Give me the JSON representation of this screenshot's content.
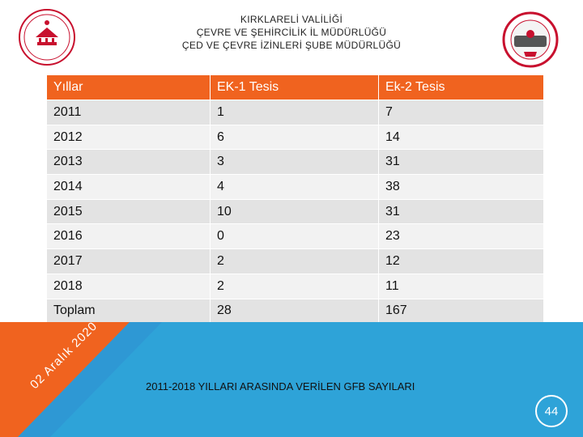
{
  "header": {
    "line1": "KIRKLARELİ VALİLİĞİ",
    "line2": "ÇEVRE VE ŞEHİRCİLİK İL MÜDÜRLÜĞÜ",
    "line3": "ÇED VE ÇEVRE İZİNLERİ ŞUBE MÜDÜRLÜĞÜ"
  },
  "table": {
    "headers": [
      "Yıllar",
      "EK-1 Tesis",
      "Ek-2 Tesis"
    ],
    "rows": [
      [
        "2011",
        "1",
        "7"
      ],
      [
        "2012",
        "6",
        "14"
      ],
      [
        "2013",
        "3",
        "31"
      ],
      [
        "2014",
        "4",
        "38"
      ],
      [
        "2015",
        "10",
        "31"
      ],
      [
        "2016",
        "0",
        "23"
      ],
      [
        "2017",
        "2",
        "12"
      ],
      [
        "2018",
        "2",
        "11"
      ],
      [
        "Toplam",
        "28",
        "167"
      ]
    ]
  },
  "caption": "2011-2018 YILLARI ARASINDA VERİLEN GFB SAYILARI",
  "date": "02 Aralık 2020",
  "page_number": "44",
  "colors": {
    "header_orange": "#f0631f",
    "band_blue": "#2ea3d8",
    "band_dark": "#2a4f9c",
    "band_orange": "#f0631f"
  }
}
